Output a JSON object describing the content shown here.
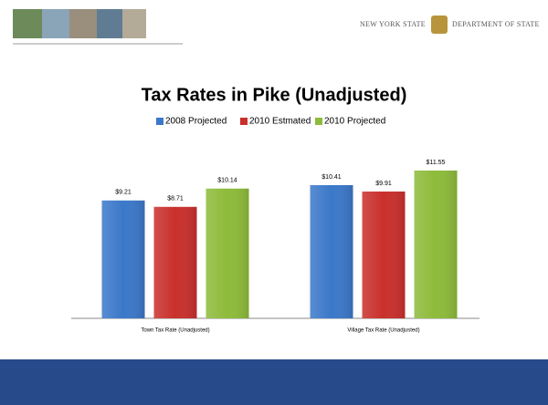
{
  "header": {
    "left_text": "New York State",
    "right_text": "Department of State"
  },
  "chart_data": {
    "type": "bar",
    "title": "Tax Rates in Pike (Unadjusted)",
    "categories": [
      "Town Tax Rate (Unadjusted)",
      "Village Tax Rate (Unadjusted)"
    ],
    "series": [
      {
        "name": "2008 Projected",
        "color": "#3b78c9",
        "values": [
          9.21,
          10.41
        ],
        "value_labels": [
          "$9.21",
          "$10.41"
        ]
      },
      {
        "name": "2010 Estmated",
        "color": "#c9302c",
        "values": [
          8.71,
          9.91
        ],
        "value_labels": [
          "$8.71",
          "$9.91"
        ]
      },
      {
        "name": "2010 Projected",
        "color": "#8dbb3a",
        "values": [
          10.14,
          11.55
        ],
        "value_labels": [
          "$10.14",
          "$11.55"
        ]
      }
    ],
    "legend": "top"
  }
}
